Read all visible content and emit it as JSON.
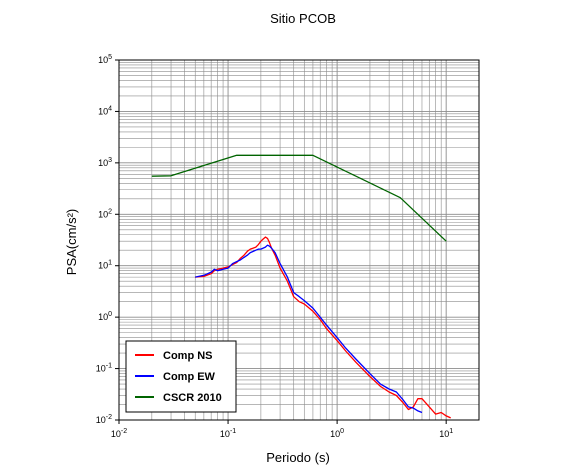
{
  "chart_data": {
    "type": "line",
    "title": "Sitio PCOB",
    "xlabel": "Periodo (s)",
    "ylabel": "PSA(cm/s²)",
    "xscale": "log",
    "yscale": "log",
    "xlim": [
      0.01,
      20
    ],
    "ylim": [
      0.01,
      100000
    ],
    "grid": true,
    "legend_position": "bottom-left",
    "x_tick_labels": [
      {
        "base": "10",
        "exp": "-2"
      },
      {
        "base": "10",
        "exp": "-1"
      },
      {
        "base": "10",
        "exp": "0"
      },
      {
        "base": "10",
        "exp": "1"
      }
    ],
    "y_tick_labels": [
      {
        "base": "10",
        "exp": "-2"
      },
      {
        "base": "10",
        "exp": "-1"
      },
      {
        "base": "10",
        "exp": "0"
      },
      {
        "base": "10",
        "exp": "1"
      },
      {
        "base": "10",
        "exp": "2"
      },
      {
        "base": "10",
        "exp": "3"
      },
      {
        "base": "10",
        "exp": "4"
      },
      {
        "base": "10",
        "exp": "5"
      }
    ],
    "series": [
      {
        "name": "Comp NS",
        "color": "#ff0000",
        "x": [
          0.05,
          0.06,
          0.07,
          0.075,
          0.08,
          0.09,
          0.1,
          0.11,
          0.12,
          0.13,
          0.14,
          0.15,
          0.16,
          0.17,
          0.18,
          0.19,
          0.2,
          0.21,
          0.22,
          0.23,
          0.24,
          0.25,
          0.27,
          0.3,
          0.35,
          0.4,
          0.45,
          0.5,
          0.6,
          0.7,
          0.8,
          1.0,
          1.2,
          1.5,
          2.0,
          2.5,
          3.0,
          3.5,
          4.0,
          4.5,
          5.0,
          5.5,
          6.0,
          7.0,
          8.0,
          9.0,
          10.0,
          11.0
        ],
        "y": [
          6.0,
          6.2,
          7.0,
          8.0,
          8.5,
          9.0,
          9.5,
          10.5,
          11.5,
          14.0,
          16.0,
          19.0,
          21.0,
          22.0,
          23.0,
          26.0,
          30.0,
          33.0,
          36.0,
          34.0,
          28.0,
          22.0,
          16.0,
          9.0,
          5.0,
          2.5,
          2.0,
          1.8,
          1.3,
          0.9,
          0.6,
          0.35,
          0.22,
          0.13,
          0.07,
          0.045,
          0.035,
          0.03,
          0.022,
          0.016,
          0.018,
          0.026,
          0.026,
          0.018,
          0.013,
          0.014,
          0.012,
          0.011
        ]
      },
      {
        "name": "Comp EW",
        "color": "#0000ff",
        "x": [
          0.05,
          0.06,
          0.07,
          0.075,
          0.08,
          0.09,
          0.1,
          0.11,
          0.12,
          0.13,
          0.14,
          0.15,
          0.16,
          0.17,
          0.18,
          0.19,
          0.2,
          0.21,
          0.22,
          0.23,
          0.24,
          0.25,
          0.27,
          0.3,
          0.35,
          0.4,
          0.45,
          0.5,
          0.6,
          0.7,
          0.8,
          1.0,
          1.2,
          1.5,
          2.0,
          2.5,
          3.0,
          3.5,
          4.0,
          4.5,
          5.0,
          5.5,
          6.0
        ],
        "y": [
          6.0,
          6.5,
          7.5,
          8.5,
          8.0,
          8.5,
          9.0,
          11.0,
          12.0,
          13.0,
          14.5,
          16.0,
          18.0,
          19.0,
          20.0,
          21.0,
          21.0,
          22.0,
          23.0,
          25.0,
          24.0,
          22.0,
          18.0,
          11.0,
          6.0,
          3.0,
          2.5,
          2.1,
          1.5,
          1.0,
          0.7,
          0.4,
          0.25,
          0.15,
          0.08,
          0.05,
          0.04,
          0.035,
          0.025,
          0.018,
          0.017,
          0.015,
          0.014
        ]
      },
      {
        "name": "CSCR 2010",
        "color": "#006400",
        "x": [
          0.02,
          0.03,
          0.12,
          0.6,
          3.8,
          10.0
        ],
        "y": [
          550,
          560,
          1400,
          1400,
          210,
          30
        ]
      }
    ]
  }
}
